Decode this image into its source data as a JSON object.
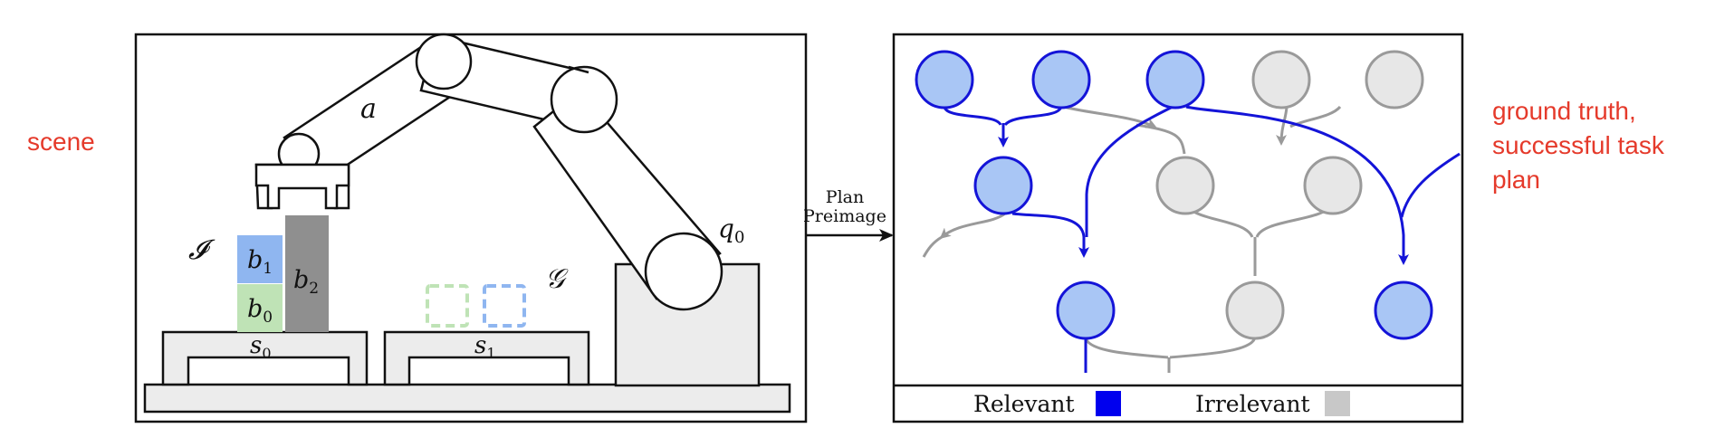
{
  "labels": {
    "scene": "scene",
    "ground_truth": "ground truth, successful task plan"
  },
  "scene": {
    "arm_link_label": "a",
    "robot_config_label": "q",
    "robot_config_subscript": "0",
    "initial_state_symbol": "𝓘",
    "goal_state_symbol": "𝒢",
    "blocks": [
      {
        "id": "b1",
        "label": "b",
        "subscript": "1",
        "color": "#8fb6f0"
      },
      {
        "id": "b0",
        "label": "b",
        "subscript": "0",
        "color": "#bfe3b6"
      },
      {
        "id": "b2",
        "label": "b",
        "subscript": "2",
        "color": "#8f8f8f"
      }
    ],
    "surfaces": [
      {
        "id": "s0",
        "label": "s",
        "subscript": "0"
      },
      {
        "id": "s1",
        "label": "s",
        "subscript": "1"
      }
    ]
  },
  "arrow": {
    "line1": "Plan",
    "line2": "Preimage"
  },
  "graph": {
    "legend": [
      {
        "label": "Relevant",
        "color": "#0000ee"
      },
      {
        "label": "Irrelevant",
        "color": "#c8c8c8"
      }
    ],
    "colors": {
      "relevant_fill": "#a9c6f5",
      "relevant_stroke": "#1414d8",
      "irrelevant_fill": "#e7e7e7",
      "irrelevant_stroke": "#9a9a9a"
    }
  }
}
